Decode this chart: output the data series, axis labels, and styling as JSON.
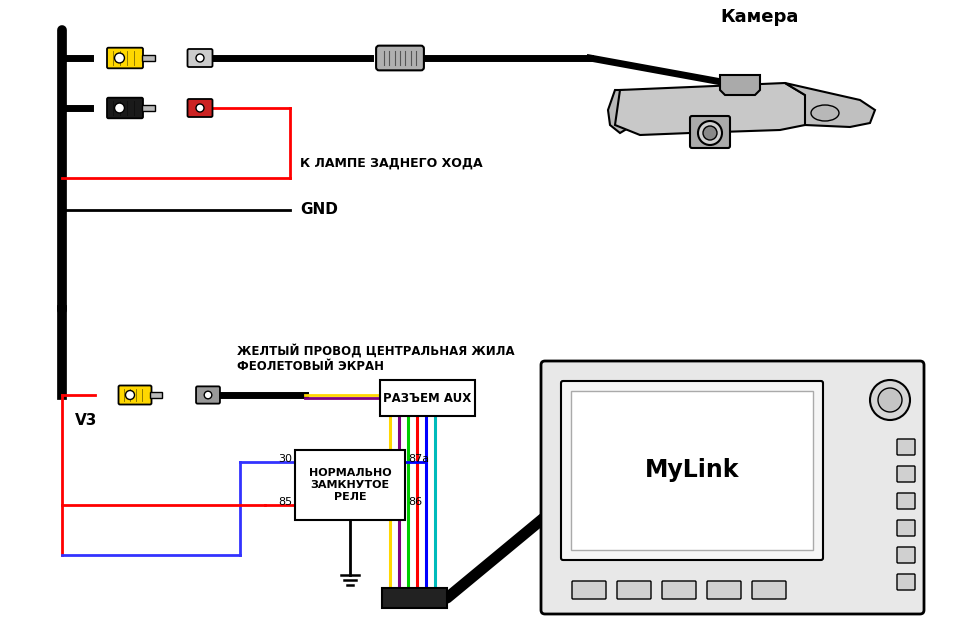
{
  "bg_color": "#ffffff",
  "title_camera": "Камера",
  "label_lamp": "К ЛАМПЕ ЗАДНЕГО ХОДА",
  "label_gnd": "GND",
  "label_v3": "V3",
  "label_yellow_wire": "ЖЕЛТЫЙ ПРОВОД ЦЕНТРАЛЬНАЯ ЖИЛА",
  "label_violet_screen": "ФЕОЛЕТОВЫЙ ЭКРАН",
  "label_aux": "РАЗЪЕМ AUX",
  "label_relay": "НОРМАЛЬНО\nЗАМКНУТОЕ\nРЕЛЕ",
  "label_mylink": "MyLink",
  "relay_pins": [
    "30",
    "85",
    "87a",
    "86"
  ],
  "wire_colors_bottom": [
    "#FFD700",
    "#800080",
    "#00CC00",
    "#FF0000",
    "#0000FF",
    "#00BBBB"
  ],
  "figw": 9.6,
  "figh": 6.39,
  "dpi": 100
}
